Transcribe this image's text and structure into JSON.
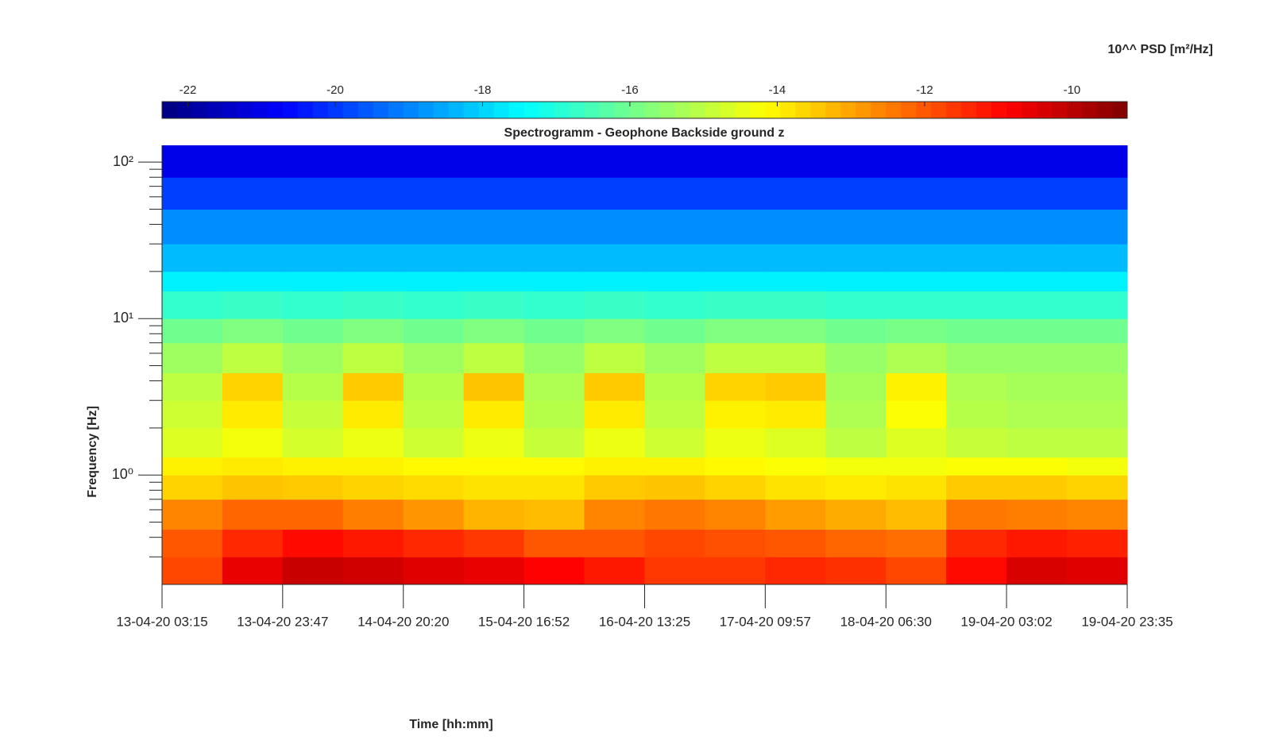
{
  "chart_data": {
    "type": "spectrogram",
    "title": "Spectrogramm - Geophone Backside ground z",
    "xlabel": "Time [hh:mm]",
    "ylabel": "Frequency [Hz]",
    "colorbar_label": "10^^ PSD [m²/Hz]",
    "colormap": "jet",
    "clim": [
      -22.35,
      -9.25
    ],
    "cticks": [
      -22,
      -20,
      -18,
      -16,
      -14,
      -12,
      -10
    ],
    "xlim": [
      "13-04-20 03:15",
      "19-04-20 23:35"
    ],
    "xticks": [
      "13-04-20 03:15",
      "13-04-20 23:47",
      "14-04-20 20:20",
      "15-04-20 16:52",
      "16-04-20 13:25",
      "17-04-20 09:57",
      "18-04-20 06:30",
      "19-04-20 03:02",
      "19-04-20 23:35"
    ],
    "ylim": [
      0.2,
      128
    ],
    "yscale": "log",
    "yticks": [
      {
        "value": 1,
        "label": "10⁰"
      },
      {
        "value": 10,
        "label": "10¹"
      },
      {
        "value": 100,
        "label": "10²"
      }
    ],
    "yminorticks": [
      0.3,
      0.4,
      0.5,
      0.6,
      0.7,
      0.8,
      0.9,
      2,
      3,
      4,
      5,
      6,
      7,
      8,
      9,
      20,
      30,
      40,
      50,
      60,
      70,
      80,
      90
    ],
    "x": [
      "13-04-20 03:15",
      "13-04-20 13:31",
      "13-04-20 23:47",
      "14-04-20 10:03",
      "14-04-20 20:20",
      "15-04-20 06:36",
      "15-04-20 16:52",
      "16-04-20 03:08",
      "16-04-20 13:25",
      "16-04-20 23:41",
      "17-04-20 09:57",
      "17-04-20 20:13",
      "18-04-20 06:30",
      "18-04-20 16:46",
      "19-04-20 03:02",
      "19-04-20 13:18",
      "19-04-20 23:35"
    ],
    "y": [
      0.2,
      0.3,
      0.45,
      0.7,
      1.0,
      1.3,
      2,
      3,
      4.5,
      7,
      10,
      15,
      20,
      30,
      50,
      80,
      128
    ],
    "z": [
      [
        -11.8,
        -10.6,
        -10.2,
        -10.3,
        -10.5,
        -10.6,
        -10.9,
        -11.2,
        -11.6,
        -11.6,
        -11.4,
        -11.5,
        -11.8,
        -11.0,
        -10.4,
        -10.5
      ],
      [
        -12.0,
        -11.4,
        -11.0,
        -11.2,
        -11.4,
        -11.6,
        -12.0,
        -12.0,
        -11.8,
        -11.9,
        -12.0,
        -12.2,
        -12.3,
        -11.4,
        -11.2,
        -11.3
      ],
      [
        -12.6,
        -12.2,
        -12.2,
        -12.5,
        -12.8,
        -13.2,
        -13.3,
        -12.6,
        -12.4,
        -12.6,
        -12.9,
        -13.1,
        -13.3,
        -12.4,
        -12.5,
        -12.6
      ],
      [
        -13.6,
        -13.4,
        -13.5,
        -13.6,
        -13.7,
        -13.8,
        -13.8,
        -13.5,
        -13.4,
        -13.6,
        -13.8,
        -13.9,
        -13.8,
        -13.5,
        -13.5,
        -13.6
      ],
      [
        -14.0,
        -13.9,
        -14.0,
        -14.0,
        -14.1,
        -14.1,
        -14.1,
        -14.0,
        -14.0,
        -14.1,
        -14.2,
        -14.3,
        -14.3,
        -14.2,
        -14.2,
        -14.3
      ],
      [
        -14.6,
        -14.3,
        -14.7,
        -14.4,
        -14.8,
        -14.4,
        -14.9,
        -14.4,
        -14.8,
        -14.4,
        -14.6,
        -15.0,
        -14.6,
        -14.9,
        -15.0,
        -15.0
      ],
      [
        -14.8,
        -13.9,
        -14.9,
        -13.9,
        -15.0,
        -13.9,
        -15.1,
        -13.9,
        -15.0,
        -14.0,
        -13.9,
        -15.2,
        -14.2,
        -15.1,
        -15.2,
        -15.2
      ],
      [
        -15.0,
        -13.6,
        -15.1,
        -13.5,
        -15.1,
        -13.4,
        -15.2,
        -13.5,
        -15.1,
        -13.6,
        -13.5,
        -15.3,
        -14.0,
        -15.2,
        -15.3,
        -15.3
      ],
      [
        -15.4,
        -15.0,
        -15.4,
        -15.0,
        -15.4,
        -15.0,
        -15.5,
        -15.0,
        -15.4,
        -15.0,
        -15.0,
        -15.5,
        -15.2,
        -15.5,
        -15.5,
        -15.5
      ],
      [
        -16.0,
        -15.8,
        -16.0,
        -15.8,
        -16.0,
        -15.8,
        -16.0,
        -15.8,
        -16.0,
        -15.8,
        -15.8,
        -16.0,
        -15.9,
        -16.0,
        -16.0,
        -16.0
      ],
      [
        -16.8,
        -16.7,
        -16.8,
        -16.7,
        -16.8,
        -16.7,
        -16.8,
        -16.7,
        -16.8,
        -16.7,
        -16.7,
        -16.8,
        -16.8,
        -16.8,
        -16.8,
        -16.8
      ],
      [
        -17.6,
        -17.6,
        -17.6,
        -17.6,
        -17.6,
        -17.6,
        -17.6,
        -17.6,
        -17.6,
        -17.6,
        -17.6,
        -17.6,
        -17.6,
        -17.6,
        -17.6,
        -17.6
      ],
      [
        -18.3,
        -18.3,
        -18.3,
        -18.3,
        -18.3,
        -18.3,
        -18.3,
        -18.3,
        -18.3,
        -18.3,
        -18.3,
        -18.3,
        -18.3,
        -18.3,
        -18.3,
        -18.3
      ],
      [
        -18.9,
        -18.9,
        -18.9,
        -18.9,
        -18.9,
        -18.9,
        -18.9,
        -18.9,
        -18.9,
        -18.9,
        -18.9,
        -18.9,
        -18.9,
        -18.9,
        -18.9,
        -18.9
      ],
      [
        -19.9,
        -19.9,
        -19.9,
        -19.9,
        -19.9,
        -19.9,
        -19.9,
        -19.9,
        -19.9,
        -19.9,
        -19.9,
        -19.9,
        -19.9,
        -19.9,
        -19.9,
        -19.9
      ],
      [
        -21.0,
        -21.0,
        -21.0,
        -21.0,
        -21.0,
        -21.0,
        -21.0,
        -21.0,
        -21.0,
        -21.0,
        -21.0,
        -21.0,
        -21.0,
        -21.0,
        -21.0,
        -21.0
      ]
    ]
  }
}
